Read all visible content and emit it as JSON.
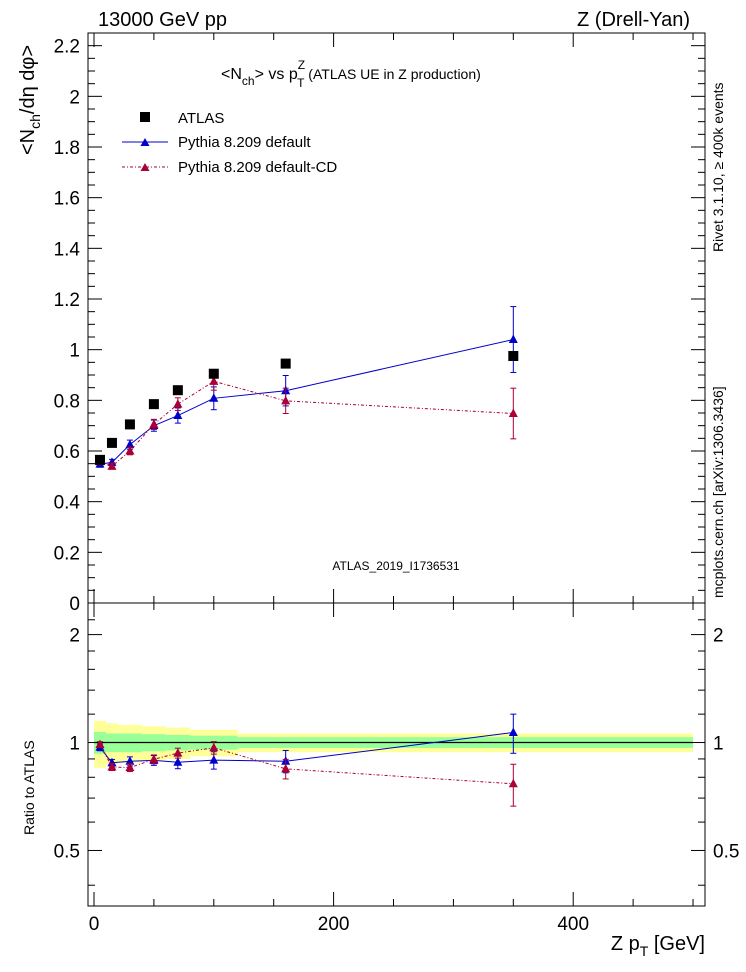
{
  "header": {
    "left": "13000 GeV pp",
    "right": "Z (Drell-Yan)",
    "title_main": "<N",
    "title_sub_ch": "ch",
    "title_mid": "> vs p",
    "title_sup_z": "Z",
    "title_sub_t": "T",
    "title_tail": " (ATLAS UE in Z production)",
    "analysis_id": "ATLAS_2019_I1736531"
  },
  "side_labels": {
    "rivet": "Rivet 3.1.10, ≥ 400k events",
    "mcplots": "mcplots.cern.ch [arXiv:1306.3436]"
  },
  "axes": {
    "ylabel_top_a": "<N",
    "ylabel_top_sub": "ch",
    "ylabel_top_b": "/dη dφ>",
    "ylabel_bottom": "Ratio to ATLAS",
    "xlabel_a": "Z p",
    "xlabel_sub": "T",
    "xlabel_b": " [GeV]"
  },
  "legend": {
    "atlas": "ATLAS",
    "default": "Pythia 8.209 default",
    "cd": "Pythia 8.209 default-CD"
  },
  "colors": {
    "atlas": "#000000",
    "default": "#0000cc",
    "cd": "#aa0033",
    "band_inner": "#99ff99",
    "band_outer": "#ffff99"
  },
  "chart_data": {
    "type": "scatter",
    "x_range": [
      -5,
      510
    ],
    "xticks": [
      0,
      200,
      400
    ],
    "main_ylim": [
      0,
      2.25
    ],
    "main_yticks": [
      0,
      0.2,
      0.4,
      0.6,
      0.8,
      1,
      1.2,
      1.4,
      1.6,
      1.8,
      2,
      2.2
    ],
    "main_ytick_labels": [
      "0",
      "0.2",
      "0.4",
      "0.6",
      "0.8",
      "1",
      "1.2",
      "1.4",
      "1.6",
      "1.8",
      "2",
      "2.2"
    ],
    "ratio_ylim": [
      0.35,
      2.45
    ],
    "ratio_log": true,
    "ratio_yticks": [
      0.5,
      1,
      2
    ],
    "ratio_ytick_labels": [
      "0.5",
      "1",
      "2"
    ],
    "data_points": {
      "x": [
        5,
        15,
        30,
        50,
        70,
        100,
        160,
        350
      ],
      "y": [
        0.565,
        0.632,
        0.705,
        0.785,
        0.84,
        0.905,
        0.945,
        0.975
      ],
      "xerr": [
        5,
        5,
        10,
        10,
        10,
        20,
        40,
        150
      ]
    },
    "band": {
      "x_lo": [
        0,
        10,
        20,
        40,
        60,
        80,
        120,
        200
      ],
      "x_hi": [
        10,
        20,
        40,
        60,
        80,
        120,
        200,
        500
      ],
      "inner": [
        0.07,
        0.06,
        0.06,
        0.055,
        0.05,
        0.045,
        0.035,
        0.035
      ],
      "outer": [
        0.15,
        0.13,
        0.12,
        0.11,
        0.1,
        0.085,
        0.06,
        0.06
      ]
    },
    "series": [
      {
        "name": "Pythia 8.209 default",
        "x": [
          5,
          15,
          30,
          50,
          70,
          100,
          160,
          350
        ],
        "y": [
          0.548,
          0.555,
          0.625,
          0.7,
          0.74,
          0.808,
          0.838,
          1.04
        ],
        "err": [
          0.012,
          0.012,
          0.018,
          0.022,
          0.03,
          0.045,
          0.06,
          0.13
        ]
      },
      {
        "name": "Pythia 8.209 default-CD",
        "x": [
          5,
          15,
          30,
          50,
          70,
          100,
          160,
          350
        ],
        "y": [
          0.558,
          0.54,
          0.6,
          0.705,
          0.785,
          0.875,
          0.798,
          0.748
        ],
        "err": [
          0.01,
          0.012,
          0.015,
          0.02,
          0.025,
          0.035,
          0.05,
          0.1
        ]
      }
    ]
  }
}
